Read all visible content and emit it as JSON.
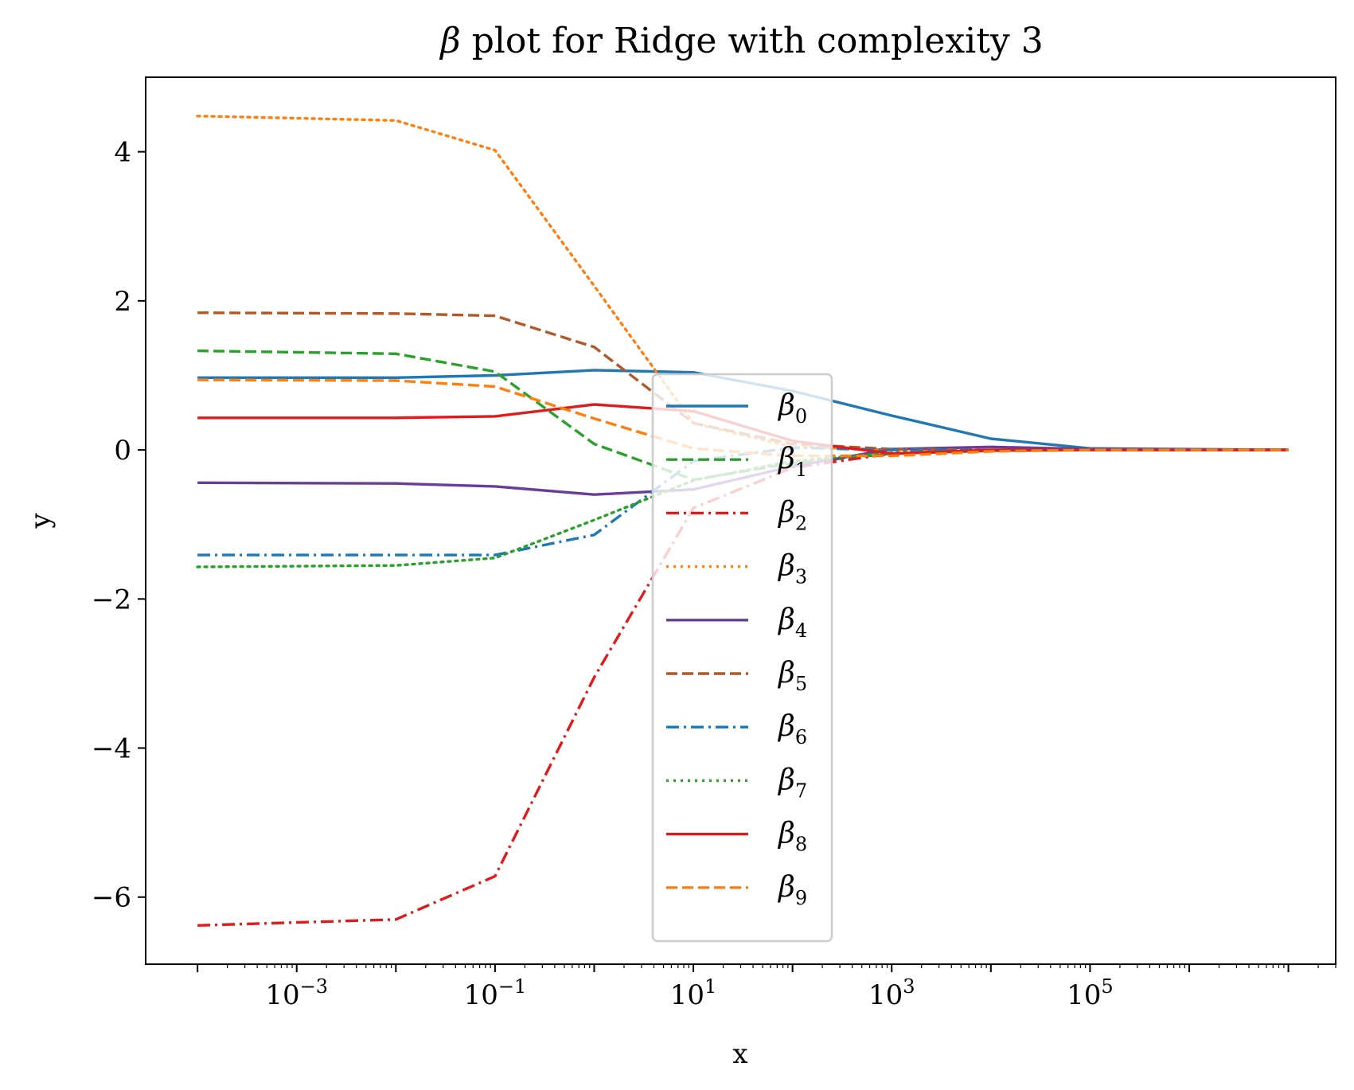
{
  "chart_data": {
    "type": "line",
    "title": "β plot for Ridge with complexity 3",
    "xlabel": "x",
    "ylabel": "y",
    "xscale": "log",
    "xlim": [
      3e-05,
      30000000
    ],
    "ylim": [
      -6.9,
      5.0
    ],
    "grid": false,
    "legend_position": "center",
    "x": [
      0.0001,
      0.01,
      0.1,
      1,
      10,
      100,
      1000,
      10000,
      100000,
      10000000
    ],
    "xticks": [
      {
        "base": "10",
        "exp": "−3",
        "value": 0.001
      },
      {
        "base": "10",
        "exp": "−1",
        "value": 0.1
      },
      {
        "base": "10",
        "exp": "1",
        "value": 10
      },
      {
        "base": "10",
        "exp": "3",
        "value": 1000
      },
      {
        "base": "10",
        "exp": "5",
        "value": 100000
      }
    ],
    "yticks": [
      {
        "label": "4",
        "value": 4
      },
      {
        "label": "2",
        "value": 2
      },
      {
        "label": "0",
        "value": 0
      },
      {
        "label": "−2",
        "value": -2
      },
      {
        "label": "−4",
        "value": -4
      },
      {
        "label": "−6",
        "value": -6
      }
    ],
    "series": [
      {
        "name": "β",
        "sub": "0",
        "color": "#1f77b4",
        "dash": "solid",
        "values": [
          0.97,
          0.97,
          1.0,
          1.07,
          1.04,
          0.79,
          0.46,
          0.15,
          0.02,
          0.0
        ]
      },
      {
        "name": "β",
        "sub": "1",
        "color": "#2ca02c",
        "dash": "dashed",
        "values": [
          1.33,
          1.29,
          1.05,
          0.08,
          -0.4,
          -0.18,
          -0.05,
          -0.01,
          0.0,
          0.0
        ]
      },
      {
        "name": "β",
        "sub": "2",
        "color": "#e31a1c",
        "dash": "dashdot",
        "values": [
          -6.38,
          -6.3,
          -5.72,
          -3.05,
          -0.78,
          -0.24,
          -0.05,
          -0.01,
          0.0,
          0.0
        ]
      },
      {
        "name": "β",
        "sub": "3",
        "color": "#ff7f0e",
        "dash": "dotted",
        "values": [
          4.48,
          4.42,
          4.02,
          2.2,
          0.36,
          0.04,
          0.0,
          0.0,
          0.0,
          0.0
        ]
      },
      {
        "name": "β",
        "sub": "4",
        "color": "#6a3d9a",
        "dash": "solid",
        "values": [
          -0.44,
          -0.45,
          -0.49,
          -0.6,
          -0.53,
          -0.22,
          0.01,
          0.04,
          0.01,
          0.0
        ]
      },
      {
        "name": "β",
        "sub": "5",
        "color": "#b15928",
        "dash": "dashed",
        "values": [
          1.84,
          1.83,
          1.8,
          1.38,
          0.36,
          0.08,
          0.01,
          0.0,
          0.0,
          0.0
        ]
      },
      {
        "name": "β",
        "sub": "6",
        "color": "#1f77b4",
        "dash": "dashdot",
        "values": [
          -1.41,
          -1.41,
          -1.41,
          -1.14,
          -0.15,
          0.03,
          0.0,
          0.0,
          0.0,
          0.0
        ]
      },
      {
        "name": "β",
        "sub": "7",
        "color": "#2ca02c",
        "dash": "dotted",
        "values": [
          -1.57,
          -1.55,
          -1.45,
          -0.94,
          -0.41,
          -0.15,
          -0.04,
          -0.01,
          0.0,
          0.0
        ]
      },
      {
        "name": "β",
        "sub": "8",
        "color": "#e31a1c",
        "dash": "solid",
        "values": [
          0.43,
          0.43,
          0.45,
          0.61,
          0.52,
          0.12,
          -0.05,
          0.0,
          0.0,
          0.0
        ]
      },
      {
        "name": "β",
        "sub": "9",
        "color": "#ff7f0e",
        "dash": "dashed",
        "values": [
          0.94,
          0.93,
          0.85,
          0.42,
          0.02,
          -0.08,
          -0.08,
          -0.02,
          0.0,
          0.0
        ]
      }
    ]
  }
}
